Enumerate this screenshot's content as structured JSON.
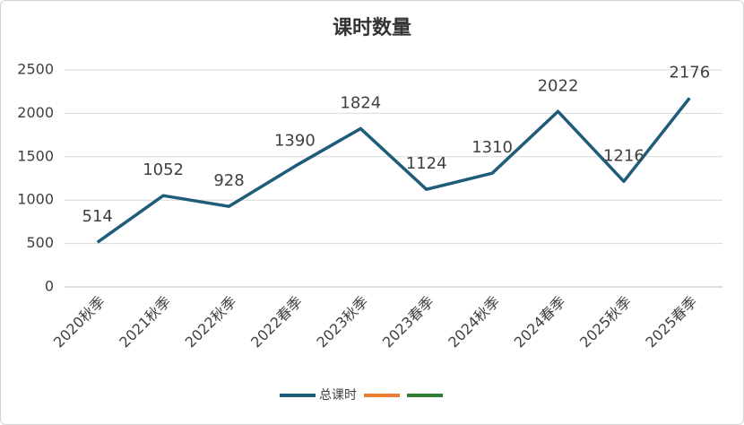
{
  "chart_data": {
    "type": "line",
    "title": "课时数量",
    "categories": [
      "2020秋季",
      "2021秋季",
      "2022秋季",
      "2022春季",
      "2023秋季",
      "2023春季",
      "2024秋季",
      "2024春季",
      "2025秋季",
      "2025春季"
    ],
    "series": [
      {
        "name": "总课时",
        "color": "#1f5c7a",
        "values": [
          514,
          1052,
          928,
          1390,
          1824,
          1124,
          1310,
          2022,
          1216,
          2176
        ]
      },
      {
        "color": "#ed7d31"
      },
      {
        "color": "#2e7d32"
      }
    ],
    "ylim": [
      0,
      2500
    ],
    "yticks": [
      0,
      500,
      1000,
      1500,
      2000,
      2500
    ],
    "grid": true
  }
}
